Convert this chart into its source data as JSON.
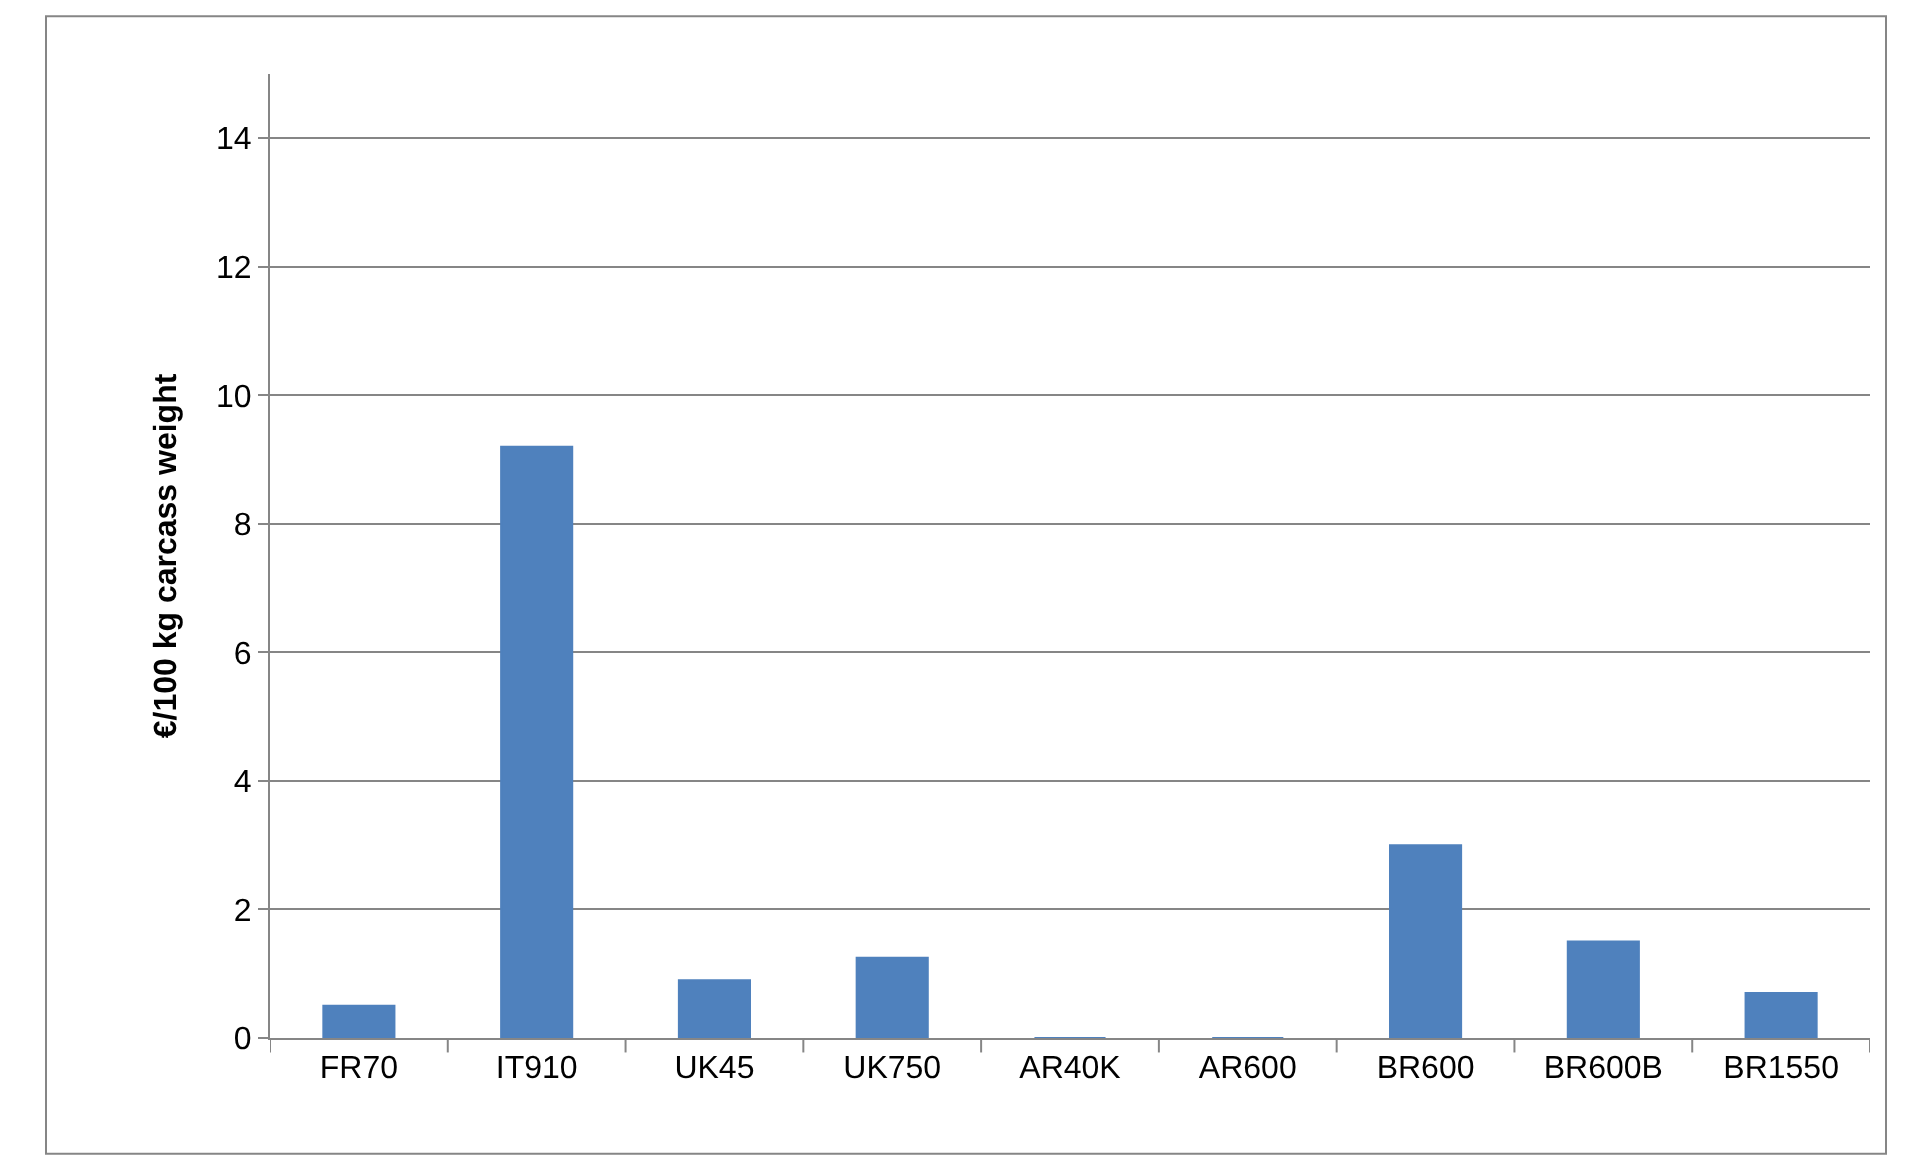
{
  "chart_data": {
    "type": "bar",
    "ylabel": "€/100 kg carcass weight",
    "categories": [
      "FR70",
      "IT910",
      "UK45",
      "UK750",
      "AR40K",
      "AR600",
      "BR600",
      "BR600B",
      "BR1550"
    ],
    "values": [
      0.5,
      9.2,
      0.9,
      1.25,
      0,
      0,
      3.0,
      1.5,
      0.7
    ],
    "color": "#4f81bd",
    "ylim": [
      0,
      15
    ],
    "yticks": [
      0,
      2,
      4,
      6,
      8,
      10,
      12,
      14
    ],
    "grid": "y"
  }
}
